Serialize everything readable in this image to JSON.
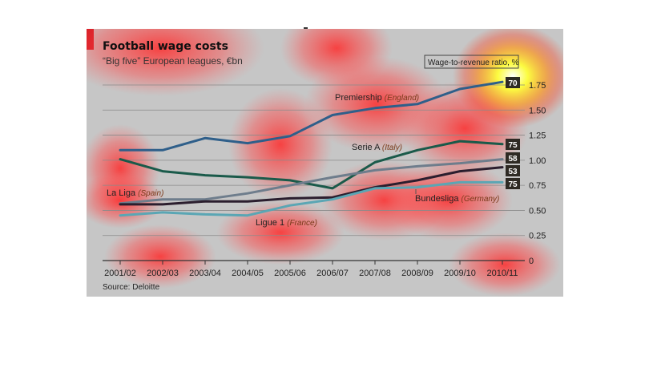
{
  "chart_data": {
    "type": "line",
    "title": "Football wage costs",
    "subtitle": "“Big five” European leagues, €bn",
    "source": "Source: Deloitte",
    "legend_box": "Wage-to-revenue ratio, %",
    "categories": [
      "2001/02",
      "2002/03",
      "2003/04",
      "2004/05",
      "2005/06",
      "2006/07",
      "2007/08",
      "2008/09",
      "2009/10",
      "2010/11"
    ],
    "y_ticks": [
      "1.75",
      "1.50",
      "1.25",
      "1.00",
      "0.75",
      "0.50",
      "0.25",
      "0"
    ],
    "ylim": [
      0,
      1.75
    ],
    "grid": true,
    "series": [
      {
        "name": "Premiership",
        "country": "(England)",
        "color": "#2f5f8a",
        "values": [
          1.1,
          1.1,
          1.22,
          1.17,
          1.24,
          1.45,
          1.52,
          1.56,
          1.71,
          1.78
        ],
        "ratio": "70"
      },
      {
        "name": "Serie A",
        "country": "(Italy)",
        "color": "#1a5a4a",
        "values": [
          1.01,
          0.89,
          0.85,
          0.83,
          0.8,
          0.72,
          0.98,
          1.1,
          1.19,
          1.16
        ],
        "ratio": "75"
      },
      {
        "name": "Bundesliga",
        "country": "(Germany)",
        "color": "#6e7d8c",
        "values": [
          0.57,
          0.61,
          0.61,
          0.67,
          0.75,
          0.83,
          0.9,
          0.94,
          0.97,
          1.01
        ],
        "ratio": "58"
      },
      {
        "name": "La Liga",
        "country": "(Spain)",
        "color": "#2b1e2e",
        "values": [
          0.56,
          0.56,
          0.59,
          0.59,
          0.62,
          0.63,
          0.73,
          0.8,
          0.89,
          0.93
        ],
        "ratio": "53"
      },
      {
        "name": "Ligue 1",
        "country": "(France)",
        "color": "#5aa6b4",
        "values": [
          0.45,
          0.48,
          0.46,
          0.45,
          0.55,
          0.61,
          0.72,
          0.73,
          0.78,
          0.78
        ],
        "ratio": "75"
      }
    ]
  },
  "colors": {
    "panel_bg": "#c6c6c6",
    "accent_red": "#d0111b",
    "badge_bg": "#2e2a24",
    "axis": "#555555"
  }
}
